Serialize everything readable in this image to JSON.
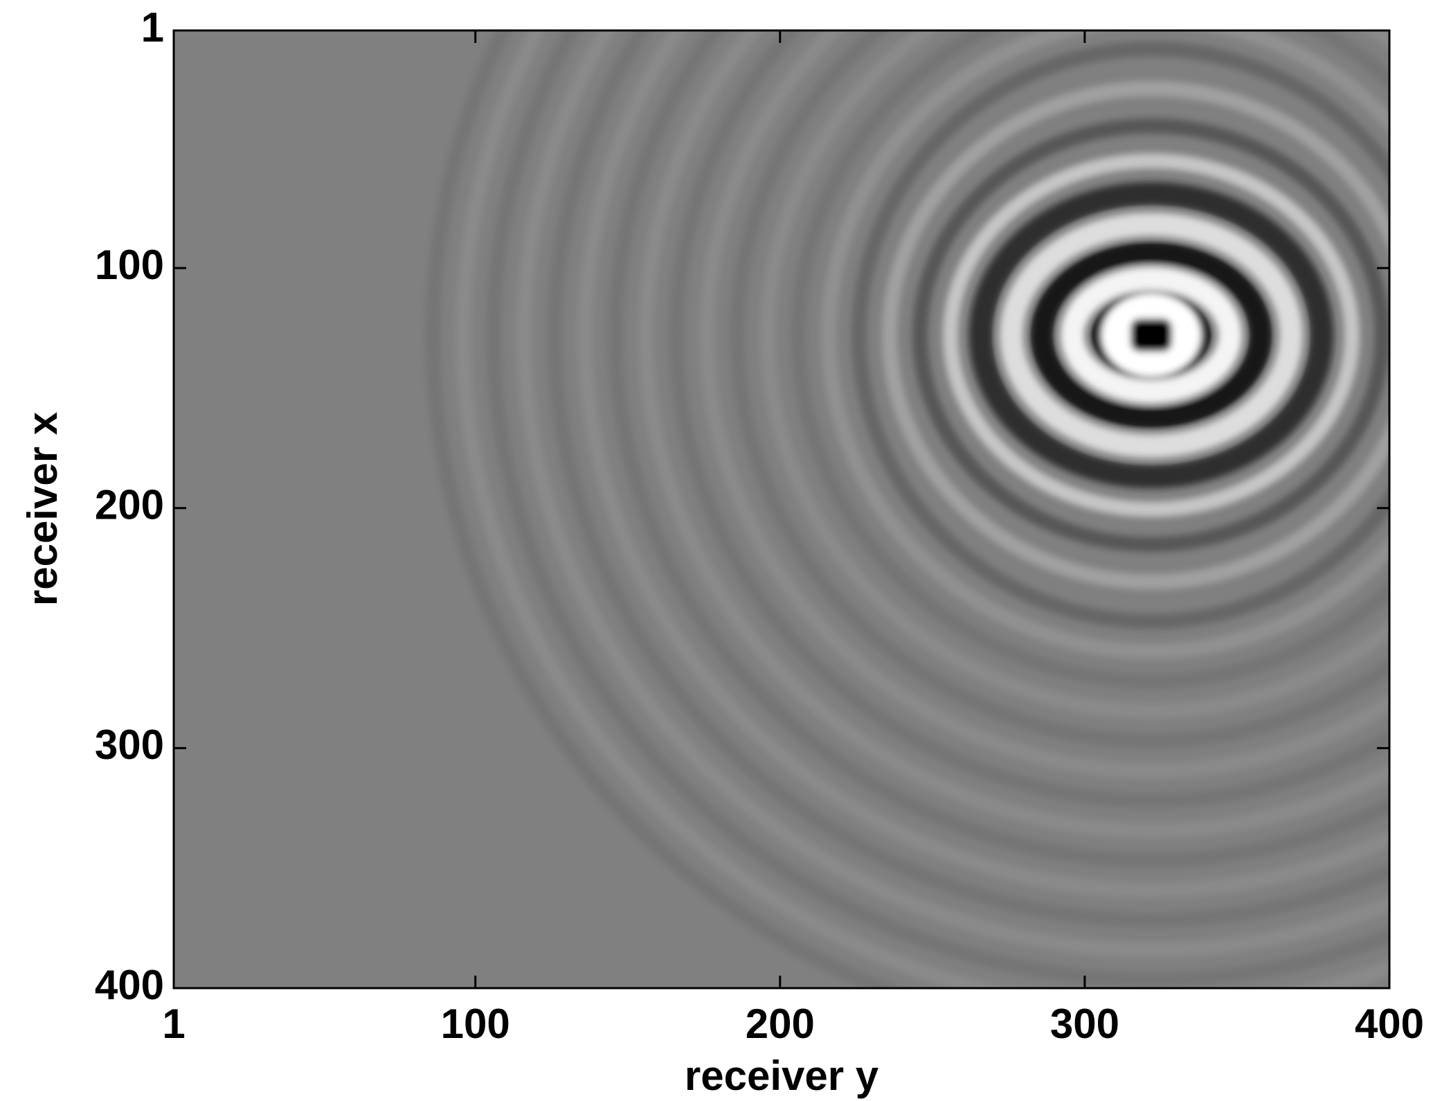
{
  "chart_data": {
    "type": "heatmap",
    "colormap": "gray",
    "xlabel": "receiver y",
    "ylabel": "receiver x",
    "xlim": [
      1,
      400
    ],
    "ylim": [
      1,
      400
    ],
    "y_reversed": true,
    "xticks": [
      1,
      100,
      200,
      300,
      400
    ],
    "yticks": [
      1,
      100,
      200,
      300,
      400
    ]
  }
}
